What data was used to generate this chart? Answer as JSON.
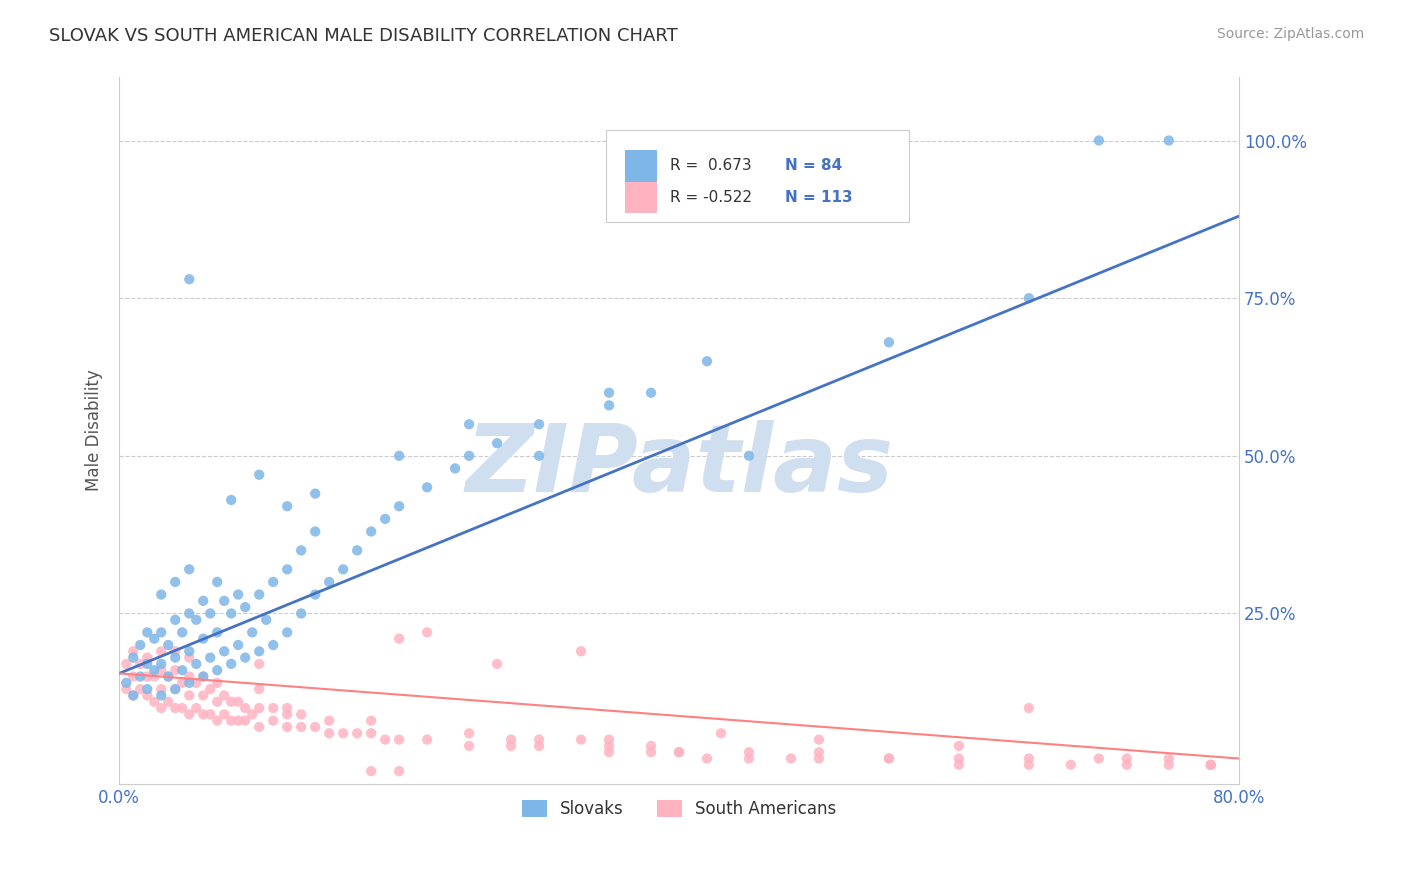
{
  "title": "SLOVAK VS SOUTH AMERICAN MALE DISABILITY CORRELATION CHART",
  "source": "Source: ZipAtlas.com",
  "ylabel": "Male Disability",
  "xlim": [
    0.0,
    0.8
  ],
  "ylim": [
    -0.02,
    1.1
  ],
  "xticks": [
    0.0,
    0.8
  ],
  "xticklabels": [
    "0.0%",
    "80.0%"
  ],
  "ytick_vals": [
    0.25,
    0.5,
    0.75,
    1.0
  ],
  "yticklabels": [
    "25.0%",
    "50.0%",
    "75.0%",
    "100.0%"
  ],
  "blue_R": 0.673,
  "blue_N": 84,
  "pink_R": -0.522,
  "pink_N": 113,
  "blue_color": "#7EB6E8",
  "pink_color": "#FFB3C1",
  "blue_line_color": "#4472C4",
  "pink_line_color": "#FF8080",
  "watermark": "ZIPatlas",
  "watermark_color": "#D0DFF0",
  "legend_label_blue": "Slovaks",
  "legend_label_pink": "South Americans",
  "blue_line_x": [
    0.0,
    0.8
  ],
  "blue_line_y": [
    0.155,
    0.88
  ],
  "pink_line_x": [
    0.0,
    0.8
  ],
  "pink_line_y": [
    0.155,
    0.02
  ],
  "tick_color": "#4472C4",
  "axis_color": "#CCCCCC",
  "grid_color": "#CCCCCC",
  "background_color": "#FFFFFF",
  "blue_scatter_x": [
    0.005,
    0.01,
    0.01,
    0.015,
    0.015,
    0.02,
    0.02,
    0.02,
    0.025,
    0.025,
    0.03,
    0.03,
    0.03,
    0.03,
    0.035,
    0.035,
    0.04,
    0.04,
    0.04,
    0.04,
    0.045,
    0.045,
    0.05,
    0.05,
    0.05,
    0.05,
    0.055,
    0.055,
    0.06,
    0.06,
    0.06,
    0.065,
    0.065,
    0.07,
    0.07,
    0.07,
    0.075,
    0.075,
    0.08,
    0.08,
    0.085,
    0.085,
    0.09,
    0.09,
    0.095,
    0.1,
    0.1,
    0.105,
    0.11,
    0.11,
    0.12,
    0.12,
    0.13,
    0.13,
    0.14,
    0.14,
    0.15,
    0.16,
    0.17,
    0.18,
    0.19,
    0.2,
    0.22,
    0.24,
    0.25,
    0.27,
    0.3,
    0.35,
    0.38,
    0.42,
    0.05,
    0.08,
    0.1,
    0.12,
    0.14,
    0.2,
    0.25,
    0.3,
    0.35,
    0.45,
    0.55,
    0.65,
    0.7,
    0.75
  ],
  "blue_scatter_y": [
    0.14,
    0.12,
    0.18,
    0.15,
    0.2,
    0.13,
    0.17,
    0.22,
    0.16,
    0.21,
    0.12,
    0.17,
    0.22,
    0.28,
    0.15,
    0.2,
    0.13,
    0.18,
    0.24,
    0.3,
    0.16,
    0.22,
    0.14,
    0.19,
    0.25,
    0.32,
    0.17,
    0.24,
    0.15,
    0.21,
    0.27,
    0.18,
    0.25,
    0.16,
    0.22,
    0.3,
    0.19,
    0.27,
    0.17,
    0.25,
    0.2,
    0.28,
    0.18,
    0.26,
    0.22,
    0.19,
    0.28,
    0.24,
    0.2,
    0.3,
    0.22,
    0.32,
    0.25,
    0.35,
    0.28,
    0.38,
    0.3,
    0.32,
    0.35,
    0.38,
    0.4,
    0.42,
    0.45,
    0.48,
    0.5,
    0.52,
    0.55,
    0.58,
    0.6,
    0.65,
    0.78,
    0.43,
    0.47,
    0.42,
    0.44,
    0.5,
    0.55,
    0.5,
    0.6,
    0.5,
    0.68,
    0.75,
    1.0,
    1.0
  ],
  "pink_scatter_x": [
    0.005,
    0.005,
    0.01,
    0.01,
    0.01,
    0.015,
    0.015,
    0.02,
    0.02,
    0.02,
    0.025,
    0.025,
    0.03,
    0.03,
    0.03,
    0.03,
    0.035,
    0.035,
    0.04,
    0.04,
    0.04,
    0.04,
    0.045,
    0.045,
    0.05,
    0.05,
    0.05,
    0.05,
    0.055,
    0.055,
    0.06,
    0.06,
    0.06,
    0.065,
    0.065,
    0.07,
    0.07,
    0.07,
    0.075,
    0.075,
    0.08,
    0.08,
    0.085,
    0.085,
    0.09,
    0.09,
    0.095,
    0.1,
    0.1,
    0.1,
    0.11,
    0.11,
    0.12,
    0.12,
    0.13,
    0.13,
    0.14,
    0.15,
    0.16,
    0.17,
    0.18,
    0.19,
    0.2,
    0.22,
    0.25,
    0.28,
    0.3,
    0.35,
    0.38,
    0.4,
    0.45,
    0.5,
    0.55,
    0.6,
    0.65,
    0.7,
    0.75,
    0.78,
    0.1,
    0.12,
    0.15,
    0.18,
    0.2,
    0.22,
    0.25,
    0.28,
    0.3,
    0.33,
    0.35,
    0.38,
    0.4,
    0.42,
    0.45,
    0.48,
    0.5,
    0.55,
    0.6,
    0.65,
    0.68,
    0.72,
    0.75,
    0.78,
    0.33,
    0.35,
    0.43,
    0.5,
    0.6,
    0.72,
    0.78,
    0.65,
    0.27,
    0.2,
    0.18
  ],
  "pink_scatter_y": [
    0.13,
    0.17,
    0.12,
    0.15,
    0.19,
    0.13,
    0.17,
    0.12,
    0.15,
    0.18,
    0.11,
    0.15,
    0.1,
    0.13,
    0.16,
    0.19,
    0.11,
    0.15,
    0.1,
    0.13,
    0.16,
    0.19,
    0.1,
    0.14,
    0.09,
    0.12,
    0.15,
    0.18,
    0.1,
    0.14,
    0.09,
    0.12,
    0.15,
    0.09,
    0.13,
    0.08,
    0.11,
    0.14,
    0.09,
    0.12,
    0.08,
    0.11,
    0.08,
    0.11,
    0.08,
    0.1,
    0.09,
    0.07,
    0.1,
    0.13,
    0.08,
    0.1,
    0.07,
    0.09,
    0.07,
    0.09,
    0.07,
    0.06,
    0.06,
    0.06,
    0.06,
    0.05,
    0.05,
    0.05,
    0.04,
    0.04,
    0.04,
    0.03,
    0.03,
    0.03,
    0.03,
    0.03,
    0.02,
    0.02,
    0.02,
    0.02,
    0.02,
    0.01,
    0.17,
    0.1,
    0.08,
    0.08,
    0.0,
    0.22,
    0.06,
    0.05,
    0.05,
    0.05,
    0.05,
    0.04,
    0.03,
    0.02,
    0.02,
    0.02,
    0.02,
    0.02,
    0.01,
    0.01,
    0.01,
    0.01,
    0.01,
    0.01,
    0.19,
    0.04,
    0.06,
    0.05,
    0.04,
    0.02,
    0.01,
    0.1,
    0.17,
    0.21,
    0.0
  ]
}
